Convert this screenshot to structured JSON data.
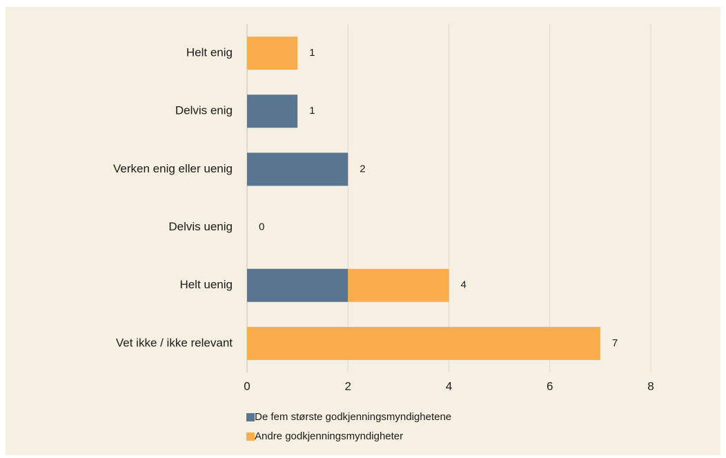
{
  "chart_data": {
    "type": "stacked_bar_horizontal",
    "categories": [
      "Helt enig",
      "Delvis enig",
      "Verken enig eller uenig",
      "Delvis uenig",
      "Helt uenig",
      "Vet ikke / ikke relevant"
    ],
    "series": [
      {
        "name": "De fem største godkjenningsmyndighetene",
        "color": "#59758f",
        "values": [
          0,
          1,
          2,
          0,
          2,
          0
        ]
      },
      {
        "name": "Andre godkjenningsmyndigheter",
        "color": "#f9ad4c",
        "values": [
          1,
          0,
          0,
          0,
          2,
          7
        ]
      }
    ],
    "total_labels": [
      "1",
      "1",
      "2",
      "0",
      "4",
      "7"
    ],
    "xlim": [
      0,
      8
    ],
    "xticks": [
      0,
      2,
      4,
      6,
      8
    ],
    "grid": true
  }
}
